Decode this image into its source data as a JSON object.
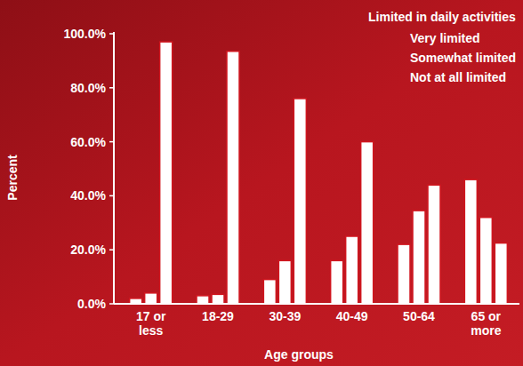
{
  "chart_data": {
    "type": "bar",
    "x_label": "Age groups",
    "y_label": "Percent",
    "legend_title": "Limited in daily activities",
    "legend": "upper right",
    "grid": false,
    "categories": [
      "17 or less",
      "18-29",
      "30-39",
      "40-49",
      "50-64",
      "65 or more"
    ],
    "series": [
      {
        "name": "Very limited",
        "color": "#ffffff",
        "values": [
          2,
          3,
          9,
          16,
          22,
          46
        ]
      },
      {
        "name": "Somewhat limited",
        "color": "#ffffff",
        "values": [
          4,
          3.5,
          16,
          25,
          34.5,
          32
        ]
      },
      {
        "name": "Not at all limited",
        "color": "#ffffff",
        "values": [
          97,
          93.5,
          76,
          60,
          44,
          22.5
        ]
      }
    ],
    "ylim": [
      0,
      100
    ],
    "yticks": [
      {
        "value": 0,
        "label": "0.0%"
      },
      {
        "value": 20,
        "label": "20.0%"
      },
      {
        "value": 40,
        "label": "40.0%"
      },
      {
        "value": 60,
        "label": "60.0%"
      },
      {
        "value": 80,
        "label": "80.0%"
      },
      {
        "value": 100,
        "label": "100.0%"
      }
    ]
  }
}
